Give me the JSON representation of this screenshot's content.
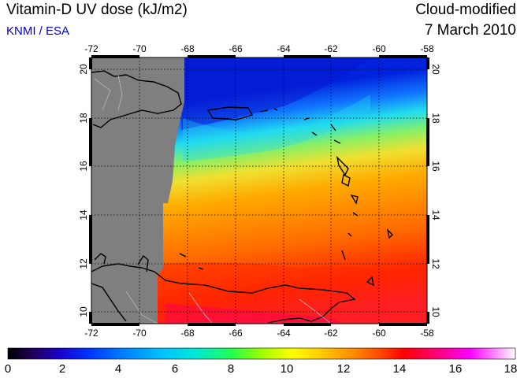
{
  "header": {
    "title": "Vitamin-D UV dose (kJ/m2)",
    "credit": "KNMI / ESA",
    "mode": "Cloud-modified",
    "date": "7 March 2010"
  },
  "map": {
    "lon_range": [
      -72,
      -58
    ],
    "lat_range": [
      9.5,
      20.5
    ],
    "lon_ticks": [
      "-72",
      "-70",
      "-68",
      "-66",
      "-64",
      "-62",
      "-60",
      "-58"
    ],
    "lat_ticks": [
      "10",
      "12",
      "14",
      "16",
      "18",
      "20"
    ],
    "no_data_color": "#7f7f7f",
    "grid": "dotted"
  },
  "colorbar": {
    "range": [
      0,
      18
    ],
    "labels": [
      "0",
      "2",
      "4",
      "6",
      "8",
      "10",
      "12",
      "14",
      "16",
      "18"
    ]
  }
}
